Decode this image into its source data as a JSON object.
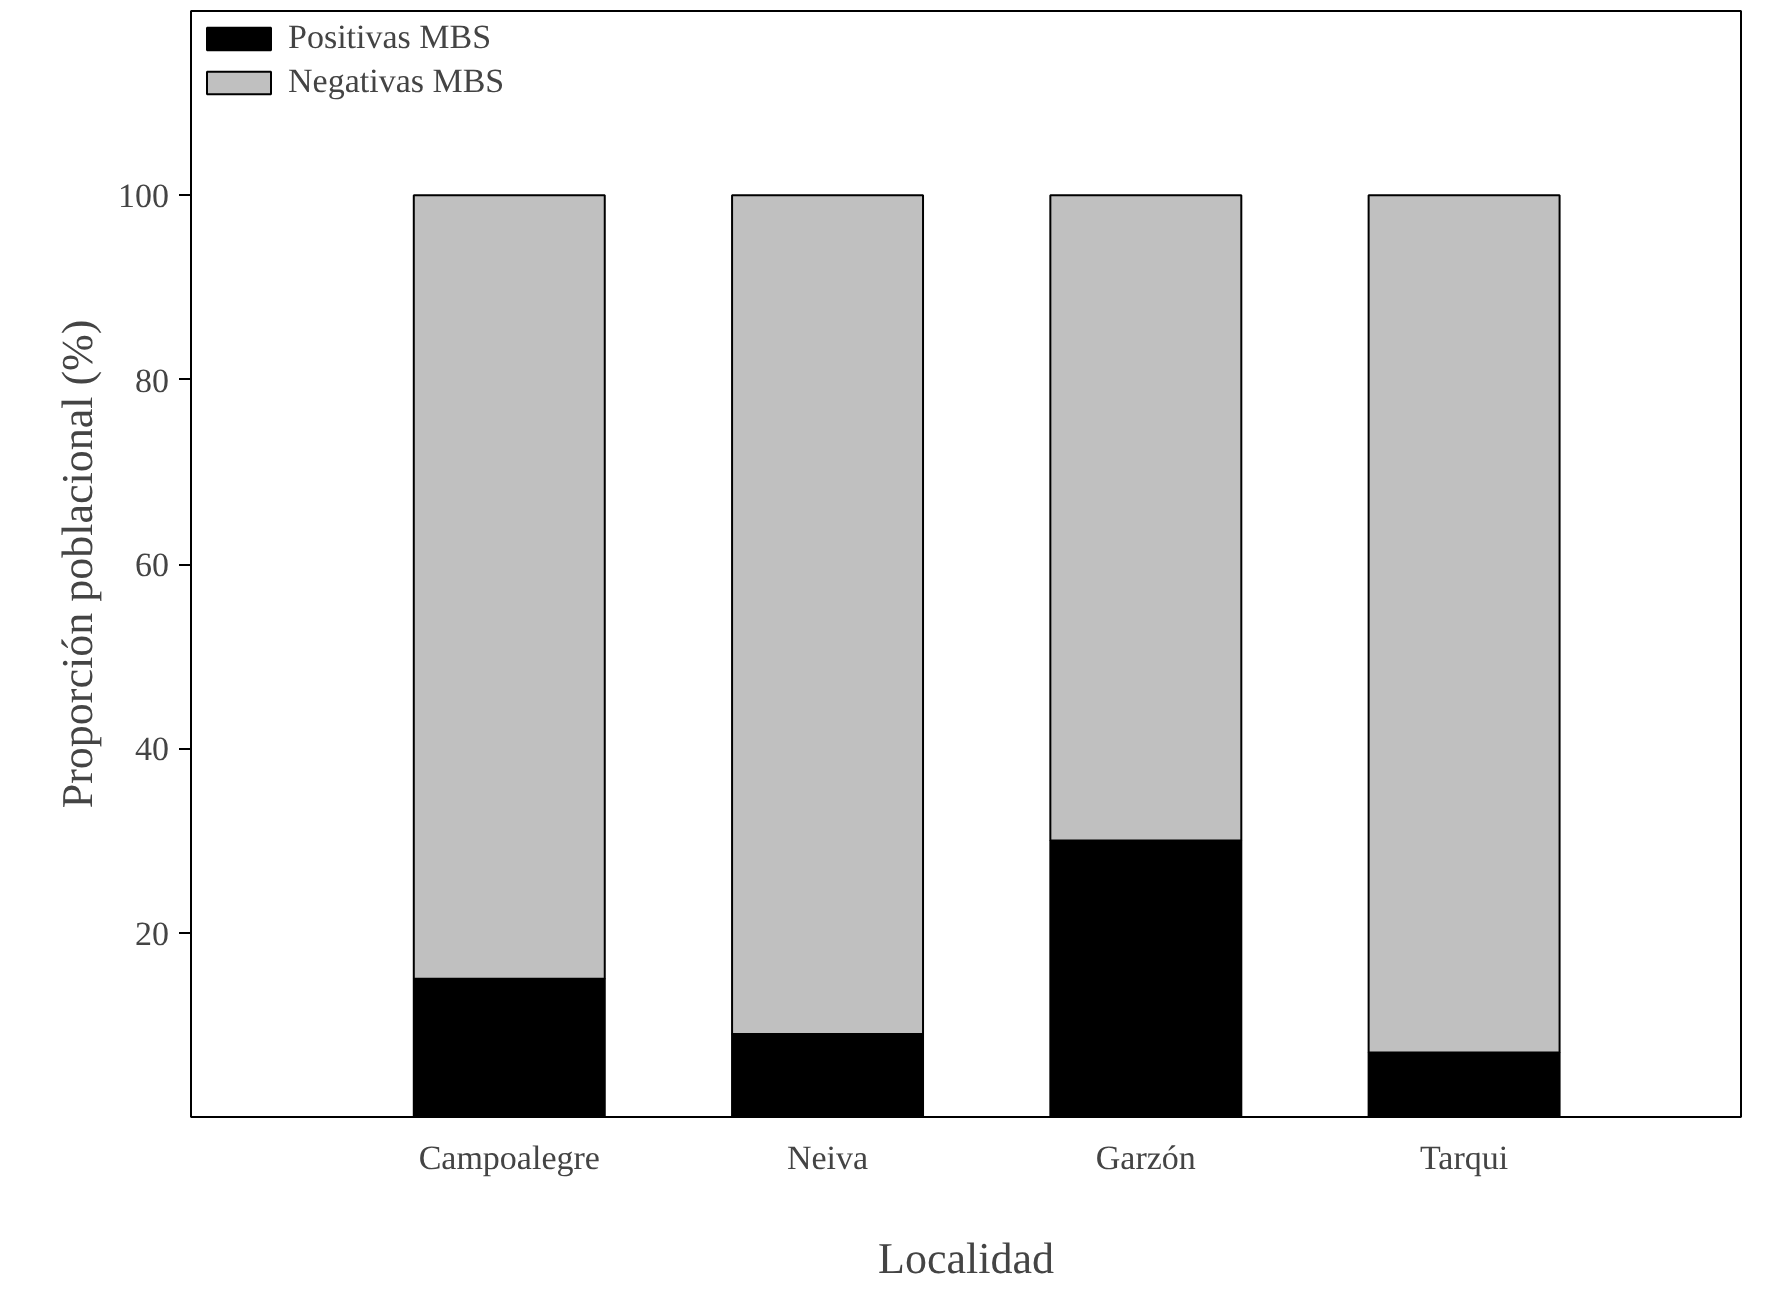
{
  "chart_data": {
    "type": "bar",
    "stacked": true,
    "xlabel": "Localidad",
    "ylabel": "Proporción poblacional (%)",
    "categories": [
      "Campoalegre",
      "Neiva",
      "Garzón",
      "Tarqui"
    ],
    "series": [
      {
        "name": "Positivas MBS",
        "color": "#000000",
        "values": [
          15,
          9,
          30,
          7
        ]
      },
      {
        "name": "Negativas MBS",
        "color": "#c0c0c0",
        "values": [
          85,
          91,
          70,
          93
        ]
      }
    ],
    "ylim": [
      0,
      120
    ],
    "yticks": [
      20,
      40,
      60,
      80,
      100
    ],
    "grid": false,
    "legend": "top left"
  }
}
